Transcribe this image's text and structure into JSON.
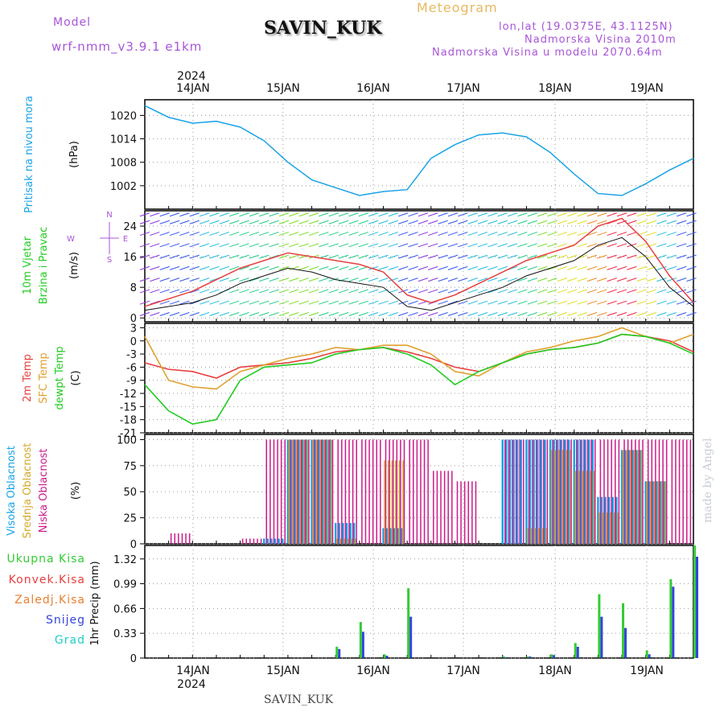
{
  "header": {
    "model_label": "Model",
    "model_run": "wrf-nmm_v3.9.1 e1km",
    "station": "SAVIN_KUK",
    "product": "Meteogram",
    "lonlat": "lon,lat (19.0375E, 43.1125N)",
    "elevation": "Nadmorska Visina 2010m",
    "model_elevation": "Nadmorska Visina u modelu 2070.64m",
    "watermark": "made by Angel",
    "footer_station": "SAVIN_KUK"
  },
  "colors": {
    "pressure": "#1aa3e8",
    "wind_label": "#22cc22",
    "temp2m": "#e84040",
    "sfc": "#e0a030",
    "dewpt": "#22cc22",
    "high_cloud": "#1aa3e8",
    "mid_cloud": "#d4a82a",
    "low_cloud": "#cc1a8a",
    "total_precip": "#33cc33",
    "conv_precip": "#e84040",
    "frz_precip": "#e88030",
    "snow": "#3344dd",
    "hail": "#22cccc",
    "purple_text": "#a855d8"
  },
  "chart_data": [
    {
      "type": "line",
      "name_panel": "pressure",
      "ylabel_lines": [
        "Pritisak na nivou mora",
        "(hPa)"
      ],
      "yticks": [
        1002,
        1008,
        1014,
        1020
      ],
      "ylim": [
        996,
        1024
      ],
      "x_top_year": "2024",
      "x_dates": [
        "14JAN",
        "15JAN",
        "16JAN",
        "17JAN",
        "18JAN",
        "19JAN"
      ],
      "x_hours": [
        0,
        6,
        12,
        18,
        24,
        30,
        36,
        42,
        48,
        54,
        60,
        66,
        72,
        78,
        84,
        90,
        96,
        102,
        108,
        114,
        120,
        126,
        132,
        138
      ],
      "values": [
        1022.5,
        1019.5,
        1018.0,
        1018.5,
        1017.0,
        1013.5,
        1008.0,
        1003.5,
        1001.5,
        999.5,
        1000.5,
        1001.0,
        1009.0,
        1012.5,
        1015.0,
        1015.5,
        1014.5,
        1010.5,
        1005.0,
        1000.0,
        999.5,
        1002.5,
        1006.0,
        1009.0
      ]
    },
    {
      "type": "line",
      "name_panel": "wind",
      "ylabel_lines": [
        "10m Vjetar",
        "Brzina i Pravac",
        "(m/s)"
      ],
      "compass": {
        "n": "N",
        "s": "S",
        "e": "E",
        "w": "W"
      },
      "yticks": [
        0,
        8,
        16,
        24
      ],
      "ylim": [
        -1,
        28
      ],
      "x_hours": [
        0,
        6,
        12,
        18,
        24,
        30,
        36,
        42,
        48,
        54,
        60,
        66,
        72,
        78,
        84,
        90,
        96,
        102,
        108,
        114,
        120,
        126,
        132,
        138
      ],
      "speed": [
        2,
        3,
        4,
        6,
        9,
        11,
        13,
        12,
        10,
        9,
        8,
        3,
        2,
        4,
        6,
        8,
        11,
        13,
        15,
        19,
        21,
        16,
        8,
        3
      ],
      "gust": [
        3,
        5,
        7,
        10,
        13,
        15,
        17,
        16,
        15,
        14,
        12,
        6,
        4,
        6,
        9,
        12,
        15,
        17,
        19,
        24,
        26,
        20,
        11,
        4
      ]
    },
    {
      "type": "line",
      "name_panel": "temperature",
      "ylabel_lines": [
        "2m Temp",
        "SFC Temp",
        "dewpt Temp",
        "(C)"
      ],
      "yticks": [
        -21,
        -18,
        -15,
        -12,
        -9,
        -6,
        -3,
        0,
        3
      ],
      "ylim": [
        -21,
        4
      ],
      "x_hours": [
        0,
        6,
        12,
        18,
        24,
        30,
        36,
        42,
        48,
        54,
        60,
        66,
        72,
        78,
        84,
        90,
        96,
        102,
        108,
        114,
        120,
        126,
        132,
        138
      ],
      "series": [
        {
          "name": "2m Temp",
          "values": [
            -5,
            -6.5,
            -7,
            -8.5,
            -6,
            -5.5,
            -5,
            -4,
            -2.5,
            -2,
            -1.5,
            -2.5,
            -4,
            -6,
            -7,
            -5,
            -3,
            -2,
            -1.5,
            -0.5,
            1.5,
            1,
            0,
            -2.5
          ]
        },
        {
          "name": "SFC Temp",
          "values": [
            1,
            -9,
            -10.5,
            -11,
            -7,
            -5.5,
            -4,
            -3,
            -1.5,
            -2,
            -1,
            -1,
            -3,
            -7,
            -8,
            -5,
            -2.5,
            -1.5,
            0,
            1,
            3,
            1,
            -0.5,
            1.5
          ]
        },
        {
          "name": "dewpt Temp",
          "values": [
            -10,
            -16,
            -19,
            -18,
            -9,
            -6,
            -5.5,
            -5,
            -3,
            -2,
            -1.5,
            -3,
            -5.5,
            -10,
            -7,
            -5,
            -3,
            -2,
            -1.5,
            -0.5,
            1.5,
            1,
            -0.5,
            -3
          ]
        }
      ]
    },
    {
      "type": "bar",
      "name_panel": "clouds",
      "ylabel_lines": [
        "Visoka Oblacnost",
        "Srednja Oblacnost",
        "Niska Oblacnost",
        "(%)"
      ],
      "yticks": [
        0,
        25,
        50,
        75,
        100
      ],
      "ylim": [
        0,
        105
      ],
      "x_hours": [
        0,
        6,
        12,
        18,
        24,
        30,
        36,
        42,
        48,
        54,
        60,
        66,
        72,
        78,
        84,
        90,
        96,
        102,
        108,
        114,
        120,
        126,
        132,
        138
      ],
      "series": [
        {
          "name": "Visoka Oblacnost",
          "values": [
            0,
            0,
            0,
            0,
            0,
            5,
            100,
            100,
            20,
            0,
            15,
            0,
            0,
            0,
            0,
            100,
            100,
            100,
            100,
            45,
            90,
            60,
            0,
            40
          ]
        },
        {
          "name": "Srednja Oblacnost",
          "values": [
            0,
            0,
            0,
            0,
            0,
            0,
            100,
            100,
            5,
            0,
            80,
            0,
            0,
            0,
            0,
            0,
            15,
            90,
            70,
            30,
            90,
            60,
            0,
            100
          ]
        },
        {
          "name": "Niska Oblacnost",
          "values": [
            0,
            10,
            0,
            0,
            5,
            100,
            100,
            100,
            100,
            100,
            100,
            100,
            70,
            60,
            0,
            100,
            100,
            100,
            100,
            100,
            100,
            100,
            100,
            100
          ]
        }
      ]
    },
    {
      "type": "bar",
      "name_panel": "precip",
      "ylabel_lines": [
        "1hr Precip (mm)"
      ],
      "legend": [
        "Ukupna Kisa",
        "Konvek.Kisa",
        "Zaledj.Kisa",
        "Snijeg",
        "Grad"
      ],
      "yticks": [
        0,
        0.33,
        0.66,
        0.99,
        1.32
      ],
      "ylim": [
        0,
        1.5
      ],
      "x_bottom_year": "2024",
      "x_hours": [
        0,
        6,
        12,
        18,
        24,
        30,
        36,
        42,
        48,
        54,
        60,
        66,
        72,
        78,
        84,
        90,
        96,
        102,
        108,
        114,
        120,
        126,
        132,
        138
      ],
      "series": [
        {
          "name": "Ukupna Kisa",
          "values": [
            0,
            0,
            0,
            0,
            0,
            0,
            0,
            0,
            0.15,
            0.48,
            0.05,
            0.93,
            0,
            0,
            0,
            0.02,
            0.02,
            0.05,
            0.2,
            0.85,
            0.73,
            0.1,
            1.05,
            1.5
          ]
        },
        {
          "name": "Snijeg",
          "values": [
            0,
            0,
            0,
            0,
            0,
            0,
            0,
            0,
            0.12,
            0.35,
            0.03,
            0.55,
            0,
            0,
            0,
            0.01,
            0.02,
            0.04,
            0.15,
            0.55,
            0.4,
            0.05,
            0.95,
            1.35
          ]
        }
      ]
    }
  ]
}
